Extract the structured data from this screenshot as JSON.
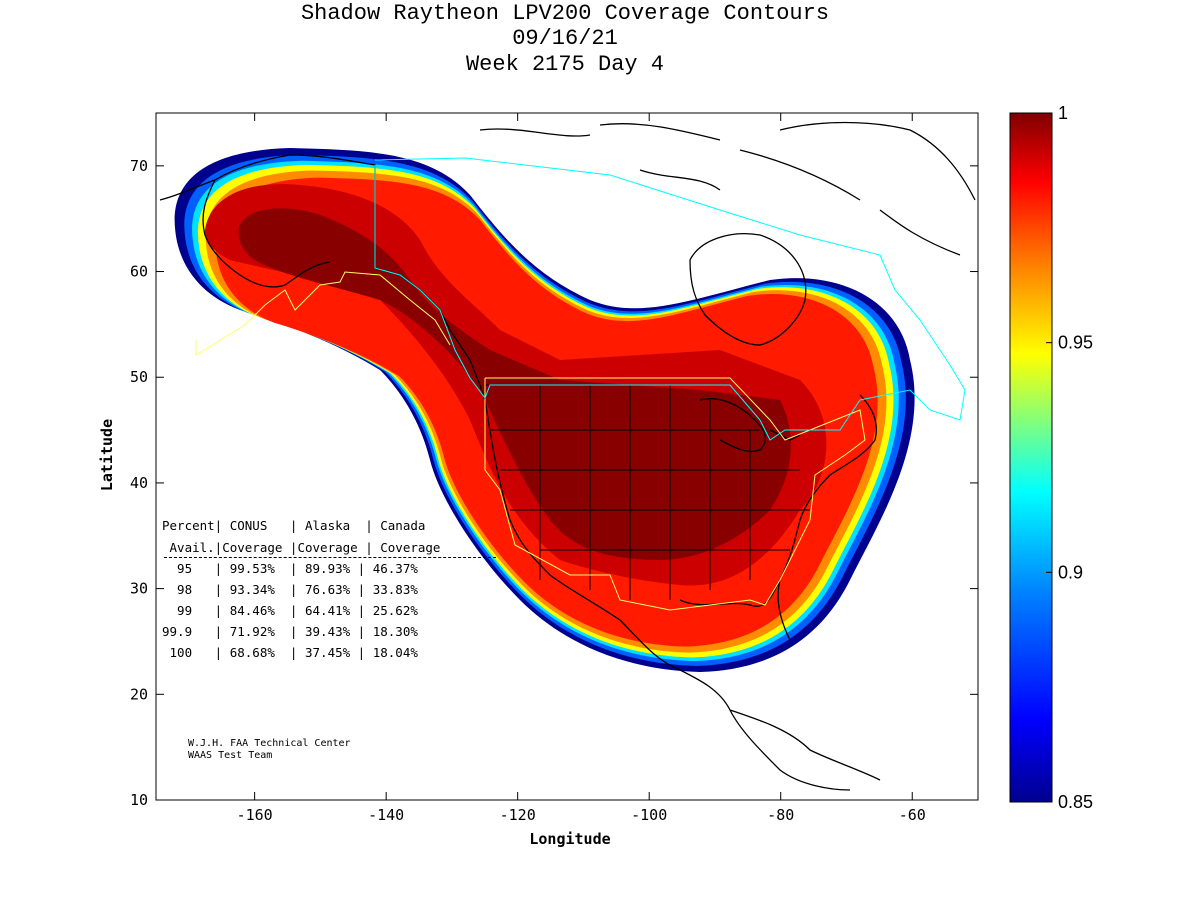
{
  "title": {
    "line1": "Shadow Raytheon LPV200 Coverage Contours",
    "line2": "09/16/21",
    "line3": "Week 2175 Day 4"
  },
  "axes": {
    "xlabel": "Longitude",
    "ylabel": "Latitude",
    "x_ticks": [
      "-160",
      "-140",
      "-120",
      "-100",
      "-80",
      "-60"
    ],
    "y_ticks": [
      "70",
      "60",
      "50",
      "40",
      "30",
      "20",
      "10"
    ],
    "xlim": [
      -175,
      -50
    ],
    "ylim": [
      10,
      75
    ]
  },
  "colorbar": {
    "ticks": [
      "1",
      "0.95",
      "0.9",
      "0.85"
    ],
    "range": [
      0.85,
      1.0
    ]
  },
  "table": {
    "header1": "Percent| CONUS   | Alaska  | Canada",
    "header2": " Avail.|Coverage |Coverage | Coverage",
    "rows": [
      "  95   | 99.53%  | 89.93% | 46.37%",
      "  98   | 93.34%  | 76.63% | 33.83%",
      "  99   | 84.46%  | 64.41% | 25.62%",
      "99.9   | 71.92%  | 39.43% | 18.30%",
      " 100   | 68.68%  | 37.45% | 18.04%"
    ]
  },
  "credit": {
    "line1": "W.J.H. FAA Technical Center",
    "line2": "WAAS Test Team"
  },
  "chart_data": {
    "type": "heatmap",
    "title": "Shadow Raytheon LPV200 Coverage Contours",
    "xlabel": "Longitude",
    "ylabel": "Latitude",
    "xlim": [
      -175,
      -50
    ],
    "ylim": [
      10,
      75
    ],
    "color_range": [
      0.85,
      1.0
    ],
    "coverage_table": {
      "columns": [
        "Percent Avail.",
        "CONUS Coverage",
        "Alaska Coverage",
        "Canada Coverage"
      ],
      "rows": [
        [
          "95",
          "99.53%",
          "89.93%",
          "46.37%"
        ],
        [
          "98",
          "93.34%",
          "76.63%",
          "33.83%"
        ],
        [
          "99",
          "84.46%",
          "64.41%",
          "25.62%"
        ],
        [
          "99.9",
          "71.92%",
          "39.43%",
          "18.30%"
        ],
        [
          "100",
          "68.68%",
          "37.45%",
          "18.04%"
        ]
      ]
    }
  }
}
